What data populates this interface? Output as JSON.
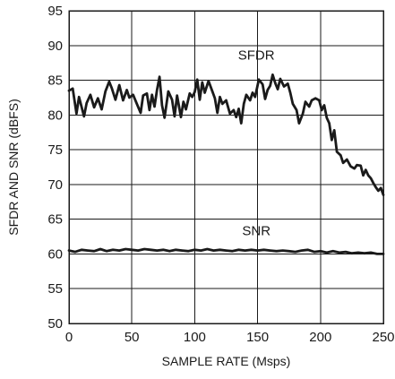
{
  "chart_data": {
    "type": "line",
    "title": "",
    "xlabel": "SAMPLE RATE (Msps)",
    "ylabel": "SFDR AND SNR (dBFS)",
    "xlim": [
      0,
      250
    ],
    "ylim": [
      50,
      95
    ],
    "xticks": [
      0,
      50,
      100,
      150,
      200,
      250
    ],
    "yticks": [
      50,
      55,
      60,
      65,
      70,
      75,
      80,
      85,
      90,
      95
    ],
    "grid": true,
    "legend": "none",
    "series_color": "#1a1a1a",
    "series": [
      {
        "name": "SFDR",
        "points": [
          [
            0,
            83.5
          ],
          [
            3,
            83.8
          ],
          [
            6,
            80.2
          ],
          [
            8,
            82.6
          ],
          [
            10,
            81.2
          ],
          [
            12,
            79.8
          ],
          [
            14,
            81.7
          ],
          [
            17,
            82.9
          ],
          [
            20,
            81.1
          ],
          [
            23,
            82.4
          ],
          [
            26,
            80.8
          ],
          [
            29,
            83.4
          ],
          [
            32,
            84.8
          ],
          [
            34,
            83.9
          ],
          [
            37,
            82.2
          ],
          [
            40,
            84.3
          ],
          [
            43,
            82.1
          ],
          [
            46,
            83.6
          ],
          [
            48,
            82.5
          ],
          [
            51,
            82.9
          ],
          [
            54,
            81.6
          ],
          [
            57,
            80.3
          ],
          [
            59,
            82.8
          ],
          [
            62,
            83.1
          ],
          [
            64,
            80.7
          ],
          [
            66,
            82.9
          ],
          [
            68,
            81.2
          ],
          [
            70,
            83.6
          ],
          [
            72,
            85.5
          ],
          [
            74,
            81.4
          ],
          [
            76,
            79.6
          ],
          [
            79,
            83.4
          ],
          [
            82,
            82.2
          ],
          [
            84,
            79.8
          ],
          [
            86,
            82.8
          ],
          [
            89,
            79.7
          ],
          [
            91,
            81.9
          ],
          [
            93,
            80.8
          ],
          [
            96,
            83.1
          ],
          [
            98,
            82.6
          ],
          [
            100,
            83.3
          ],
          [
            102,
            85.1
          ],
          [
            104,
            82.2
          ],
          [
            106,
            84.7
          ],
          [
            108,
            83.2
          ],
          [
            111,
            84.9
          ],
          [
            114,
            83.4
          ],
          [
            116,
            82.4
          ],
          [
            118,
            80.3
          ],
          [
            120,
            82.6
          ],
          [
            122,
            81.6
          ],
          [
            125,
            82.1
          ],
          [
            128,
            80.2
          ],
          [
            131,
            80.7
          ],
          [
            133,
            79.7
          ],
          [
            135,
            80.9
          ],
          [
            137,
            78.8
          ],
          [
            139,
            81.6
          ],
          [
            141,
            82.9
          ],
          [
            144,
            82.1
          ],
          [
            146,
            83.2
          ],
          [
            148,
            82.6
          ],
          [
            151,
            85.1
          ],
          [
            154,
            84.4
          ],
          [
            156,
            82.3
          ],
          [
            158,
            83.6
          ],
          [
            160,
            84.2
          ],
          [
            162,
            85.8
          ],
          [
            164,
            84.6
          ],
          [
            166,
            83.7
          ],
          [
            168,
            85.2
          ],
          [
            171,
            84.1
          ],
          [
            174,
            84.5
          ],
          [
            176,
            83.2
          ],
          [
            178,
            81.6
          ],
          [
            181,
            80.7
          ],
          [
            183,
            78.8
          ],
          [
            186,
            80.2
          ],
          [
            188,
            81.9
          ],
          [
            191,
            81.2
          ],
          [
            193,
            82.1
          ],
          [
            196,
            82.4
          ],
          [
            199,
            82.1
          ],
          [
            201,
            80.7
          ],
          [
            203,
            81.4
          ],
          [
            205,
            79.6
          ],
          [
            207,
            78.8
          ],
          [
            209,
            76.4
          ],
          [
            211,
            77.8
          ],
          [
            213,
            74.7
          ],
          [
            216,
            74.2
          ],
          [
            218,
            73.1
          ],
          [
            221,
            73.6
          ],
          [
            224,
            72.6
          ],
          [
            227,
            72.3
          ],
          [
            229,
            72.8
          ],
          [
            232,
            72.7
          ],
          [
            234,
            71.3
          ],
          [
            236,
            72.1
          ],
          [
            238,
            71.3
          ],
          [
            240,
            70.9
          ],
          [
            242,
            70.2
          ],
          [
            244,
            69.6
          ],
          [
            246,
            69.1
          ],
          [
            248,
            69.5
          ],
          [
            250,
            68.5
          ]
        ]
      },
      {
        "name": "SNR",
        "points": [
          [
            0,
            60.5
          ],
          [
            5,
            60.3
          ],
          [
            10,
            60.6
          ],
          [
            15,
            60.5
          ],
          [
            20,
            60.4
          ],
          [
            25,
            60.7
          ],
          [
            30,
            60.4
          ],
          [
            35,
            60.6
          ],
          [
            40,
            60.5
          ],
          [
            45,
            60.7
          ],
          [
            50,
            60.6
          ],
          [
            55,
            60.5
          ],
          [
            60,
            60.7
          ],
          [
            65,
            60.6
          ],
          [
            70,
            60.5
          ],
          [
            75,
            60.6
          ],
          [
            80,
            60.4
          ],
          [
            85,
            60.6
          ],
          [
            90,
            60.5
          ],
          [
            95,
            60.4
          ],
          [
            100,
            60.6
          ],
          [
            105,
            60.5
          ],
          [
            110,
            60.7
          ],
          [
            115,
            60.5
          ],
          [
            120,
            60.6
          ],
          [
            125,
            60.5
          ],
          [
            130,
            60.4
          ],
          [
            135,
            60.6
          ],
          [
            140,
            60.5
          ],
          [
            145,
            60.6
          ],
          [
            150,
            60.5
          ],
          [
            155,
            60.6
          ],
          [
            160,
            60.5
          ],
          [
            165,
            60.4
          ],
          [
            170,
            60.5
          ],
          [
            175,
            60.4
          ],
          [
            180,
            60.3
          ],
          [
            185,
            60.5
          ],
          [
            190,
            60.6
          ],
          [
            195,
            60.3
          ],
          [
            200,
            60.4
          ],
          [
            205,
            60.2
          ],
          [
            210,
            60.4
          ],
          [
            215,
            60.2
          ],
          [
            220,
            60.3
          ],
          [
            225,
            60.1
          ],
          [
            230,
            60.2
          ],
          [
            235,
            60.1
          ],
          [
            240,
            60.2
          ],
          [
            245,
            60.0
          ],
          [
            250,
            60.0
          ]
        ]
      }
    ],
    "annotations": [
      {
        "text": "SFDR",
        "x": 149,
        "y": 88
      },
      {
        "text": "SNR",
        "x": 149,
        "y": 62.7
      }
    ]
  }
}
